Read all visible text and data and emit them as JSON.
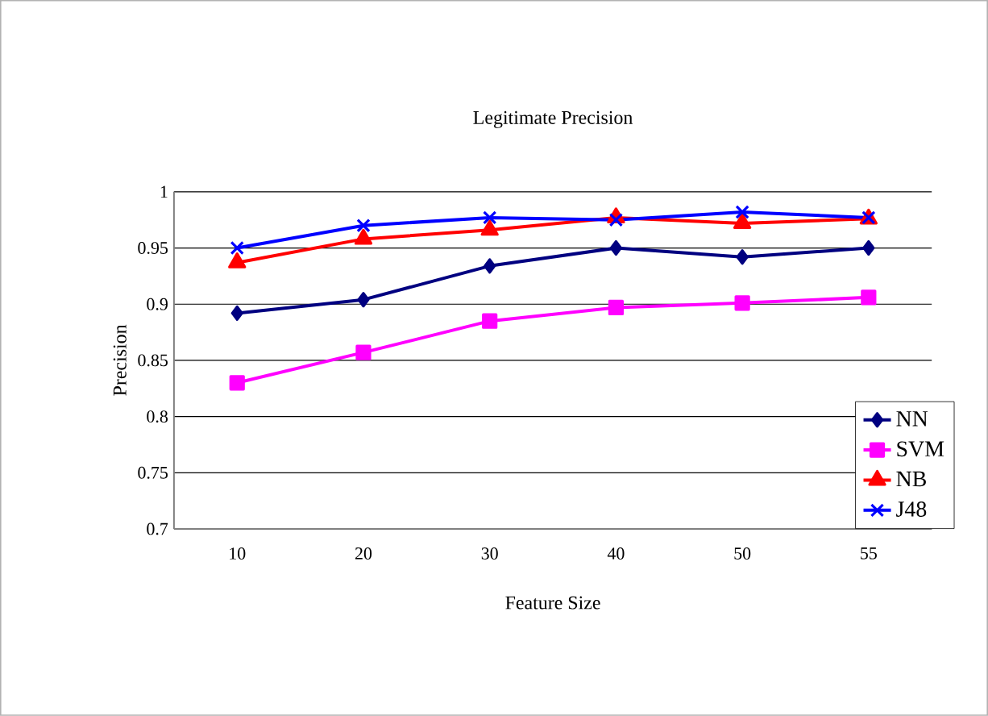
{
  "chart_data": {
    "type": "line",
    "title": "Legitimate Precision",
    "xlabel": "Feature Size",
    "ylabel": "Precision",
    "categories": [
      "10",
      "20",
      "30",
      "40",
      "50",
      "55"
    ],
    "series": [
      {
        "name": "NN",
        "color": "#000080",
        "marker": "diamond",
        "values": [
          0.892,
          0.904,
          0.934,
          0.95,
          0.942,
          0.95
        ]
      },
      {
        "name": "SVM",
        "color": "#ff00ff",
        "marker": "square",
        "values": [
          0.83,
          0.857,
          0.885,
          0.897,
          0.901,
          0.906
        ]
      },
      {
        "name": "NB",
        "color": "#ff0000",
        "marker": "triangle",
        "values": [
          0.937,
          0.958,
          0.966,
          0.977,
          0.972,
          0.976
        ]
      },
      {
        "name": "J48",
        "color": "#0000ff",
        "marker": "cross",
        "values": [
          0.95,
          0.97,
          0.977,
          0.975,
          0.982,
          0.977
        ]
      }
    ],
    "ylim": [
      0.7,
      1
    ],
    "yticks": [
      0.7,
      0.75,
      0.8,
      0.85,
      0.9,
      0.95,
      1
    ],
    "grid": "y",
    "legend": "bottom right"
  }
}
